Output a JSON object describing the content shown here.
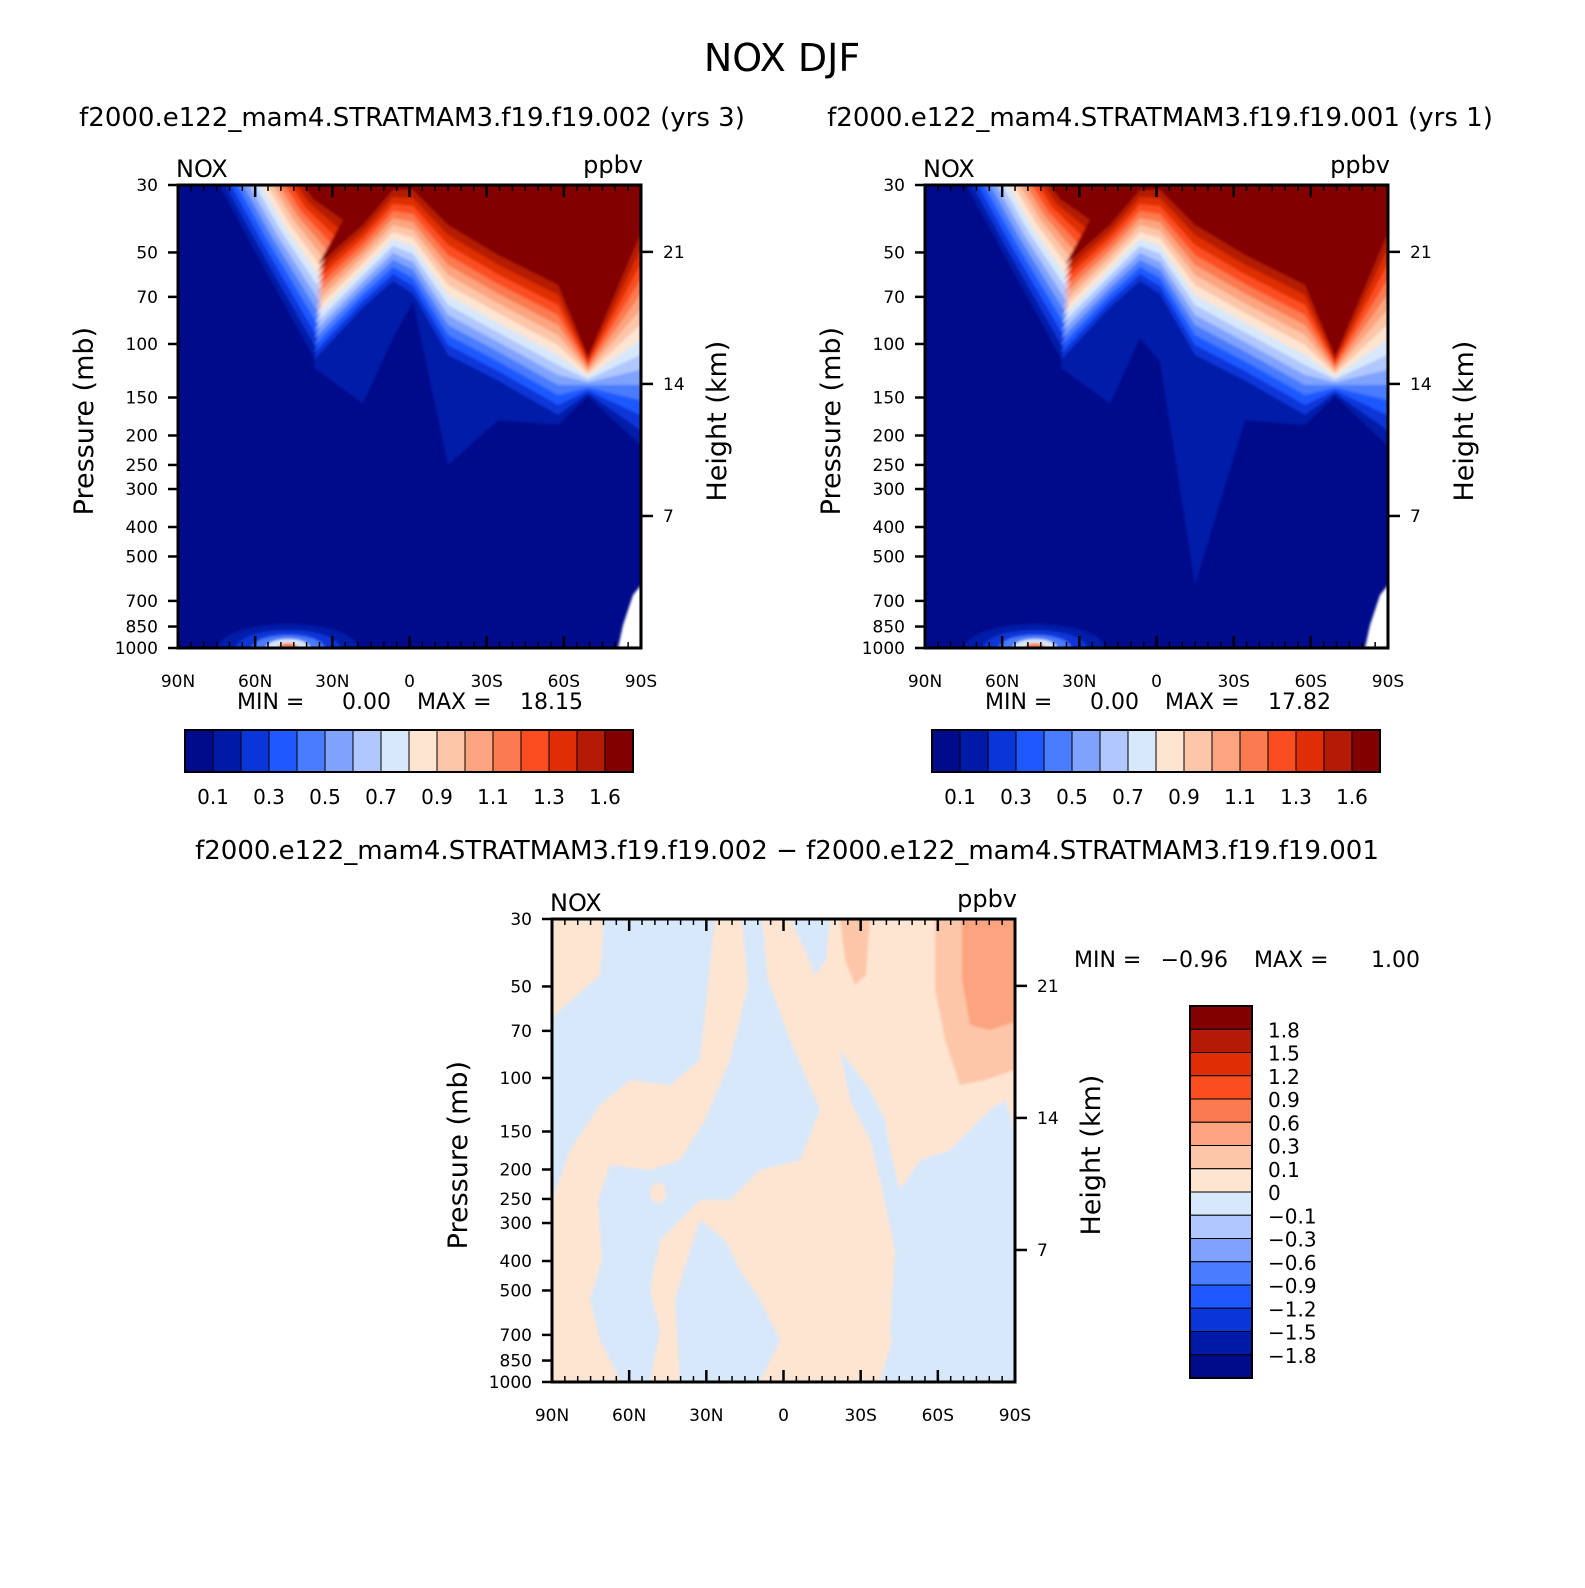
{
  "figure": {
    "title": "NOX DJF",
    "case_a": "f2000.e122_mam4.STRATMAM3.f19.f19.002",
    "case_b": "f2000.e122_mam4.STRATMAM3.f19.f19.001",
    "top_left_title": "f2000.e122_mam4.STRATMAM3.f19.f19.002  (yrs  3)",
    "top_right_title": "f2000.e122_mam4.STRATMAM3.f19.f19.001  (yrs  1)",
    "diff_title": "f2000.e122_mam4.STRATMAM3.f19.f19.002  −  f2000.e122_mam4.STRATMAM3.f19.f19.001"
  },
  "chart_data": [
    {
      "id": "panel-a",
      "type": "heatmap",
      "variable": "NOX",
      "units": "ppbv",
      "ylabel": "Pressure  (mb)",
      "ylabel_right": "Height  (km)",
      "x_ticks": [
        "90N",
        "60N",
        "30N",
        "0",
        "30S",
        "60S",
        "90S"
      ],
      "x_values": [
        90,
        60,
        30,
        0,
        -30,
        -60,
        -90
      ],
      "y_ticks": [
        30,
        50,
        70,
        100,
        150,
        200,
        250,
        300,
        400,
        500,
        700,
        850,
        1000
      ],
      "y_range": [
        1000,
        30
      ],
      "height_ticks": [
        21,
        14,
        7
      ],
      "min_label": "MIN  =",
      "min": "0.00",
      "max_label": "MAX  =",
      "max": "18.15",
      "colorbar_labels": [
        "0.1",
        "0.3",
        "0.5",
        "0.7",
        "0.9",
        "1.1",
        "1.3",
        "1.6"
      ],
      "colorbar_levels": [
        0.1,
        0.2,
        0.3,
        0.4,
        0.5,
        0.6,
        0.7,
        0.8,
        0.9,
        1.0,
        1.1,
        1.2,
        1.3,
        1.4,
        1.6
      ]
    },
    {
      "id": "panel-b",
      "type": "heatmap",
      "variable": "NOX",
      "units": "ppbv",
      "ylabel": "Pressure  (mb)",
      "ylabel_right": "Height  (km)",
      "x_ticks": [
        "90N",
        "60N",
        "30N",
        "0",
        "30S",
        "60S",
        "90S"
      ],
      "x_values": [
        90,
        60,
        30,
        0,
        -30,
        -60,
        -90
      ],
      "y_ticks": [
        30,
        50,
        70,
        100,
        150,
        200,
        250,
        300,
        400,
        500,
        700,
        850,
        1000
      ],
      "y_range": [
        1000,
        30
      ],
      "height_ticks": [
        21,
        14,
        7
      ],
      "min_label": "MIN  =",
      "min": "0.00",
      "max_label": "MAX  =",
      "max": "17.82",
      "colorbar_labels": [
        "0.1",
        "0.3",
        "0.5",
        "0.7",
        "0.9",
        "1.1",
        "1.3",
        "1.6"
      ],
      "colorbar_levels": [
        0.1,
        0.2,
        0.3,
        0.4,
        0.5,
        0.6,
        0.7,
        0.8,
        0.9,
        1.0,
        1.1,
        1.2,
        1.3,
        1.4,
        1.6
      ]
    },
    {
      "id": "panel-diff",
      "type": "heatmap",
      "variable": "NOX",
      "units": "ppbv",
      "ylabel": "Pressure  (mb)",
      "ylabel_right": "Height  (km)",
      "x_ticks": [
        "90N",
        "60N",
        "30N",
        "0",
        "30S",
        "60S",
        "90S"
      ],
      "x_values": [
        90,
        60,
        30,
        0,
        -30,
        -60,
        -90
      ],
      "y_ticks": [
        30,
        50,
        70,
        100,
        150,
        200,
        250,
        300,
        400,
        500,
        700,
        850,
        1000
      ],
      "y_range": [
        1000,
        30
      ],
      "height_ticks": [
        21,
        14,
        7
      ],
      "min_label": "MIN  =",
      "min": "−0.96",
      "max_label": "MAX  =",
      "max": "1.00",
      "colorbar_labels": [
        "1.8",
        "1.5",
        "1.2",
        "0.9",
        "0.6",
        "0.3",
        "0.1",
        "0",
        "−0.1",
        "−0.3",
        "−0.6",
        "−0.9",
        "−1.2",
        "−1.5",
        "−1.8"
      ],
      "colorbar_levels": [
        1.8,
        1.5,
        1.2,
        0.9,
        0.6,
        0.3,
        0.1,
        0,
        -0.1,
        -0.3,
        -0.6,
        -0.9,
        -1.2,
        -1.5,
        -1.8
      ]
    }
  ],
  "colors": {
    "seq_palette": [
      "#000b8b",
      "#001aa8",
      "#0a35d8",
      "#1f58ff",
      "#4a7cff",
      "#7fa2ff",
      "#b0c7ff",
      "#d8e8fb",
      "#fde5d2",
      "#fdc6a8",
      "#fca47f",
      "#fb7a4f",
      "#fc4d20",
      "#df2e05",
      "#b41a05",
      "#830000"
    ],
    "diff_palette": [
      "#830000",
      "#b41a05",
      "#df2e05",
      "#fc4d20",
      "#fb7a4f",
      "#fca47f",
      "#fdc6a8",
      "#fde5d2",
      "#d8e8fb",
      "#b0c7ff",
      "#7fa2ff",
      "#4a7cff",
      "#1f58ff",
      "#0a35d8",
      "#001aa8",
      "#000b8b"
    ]
  }
}
